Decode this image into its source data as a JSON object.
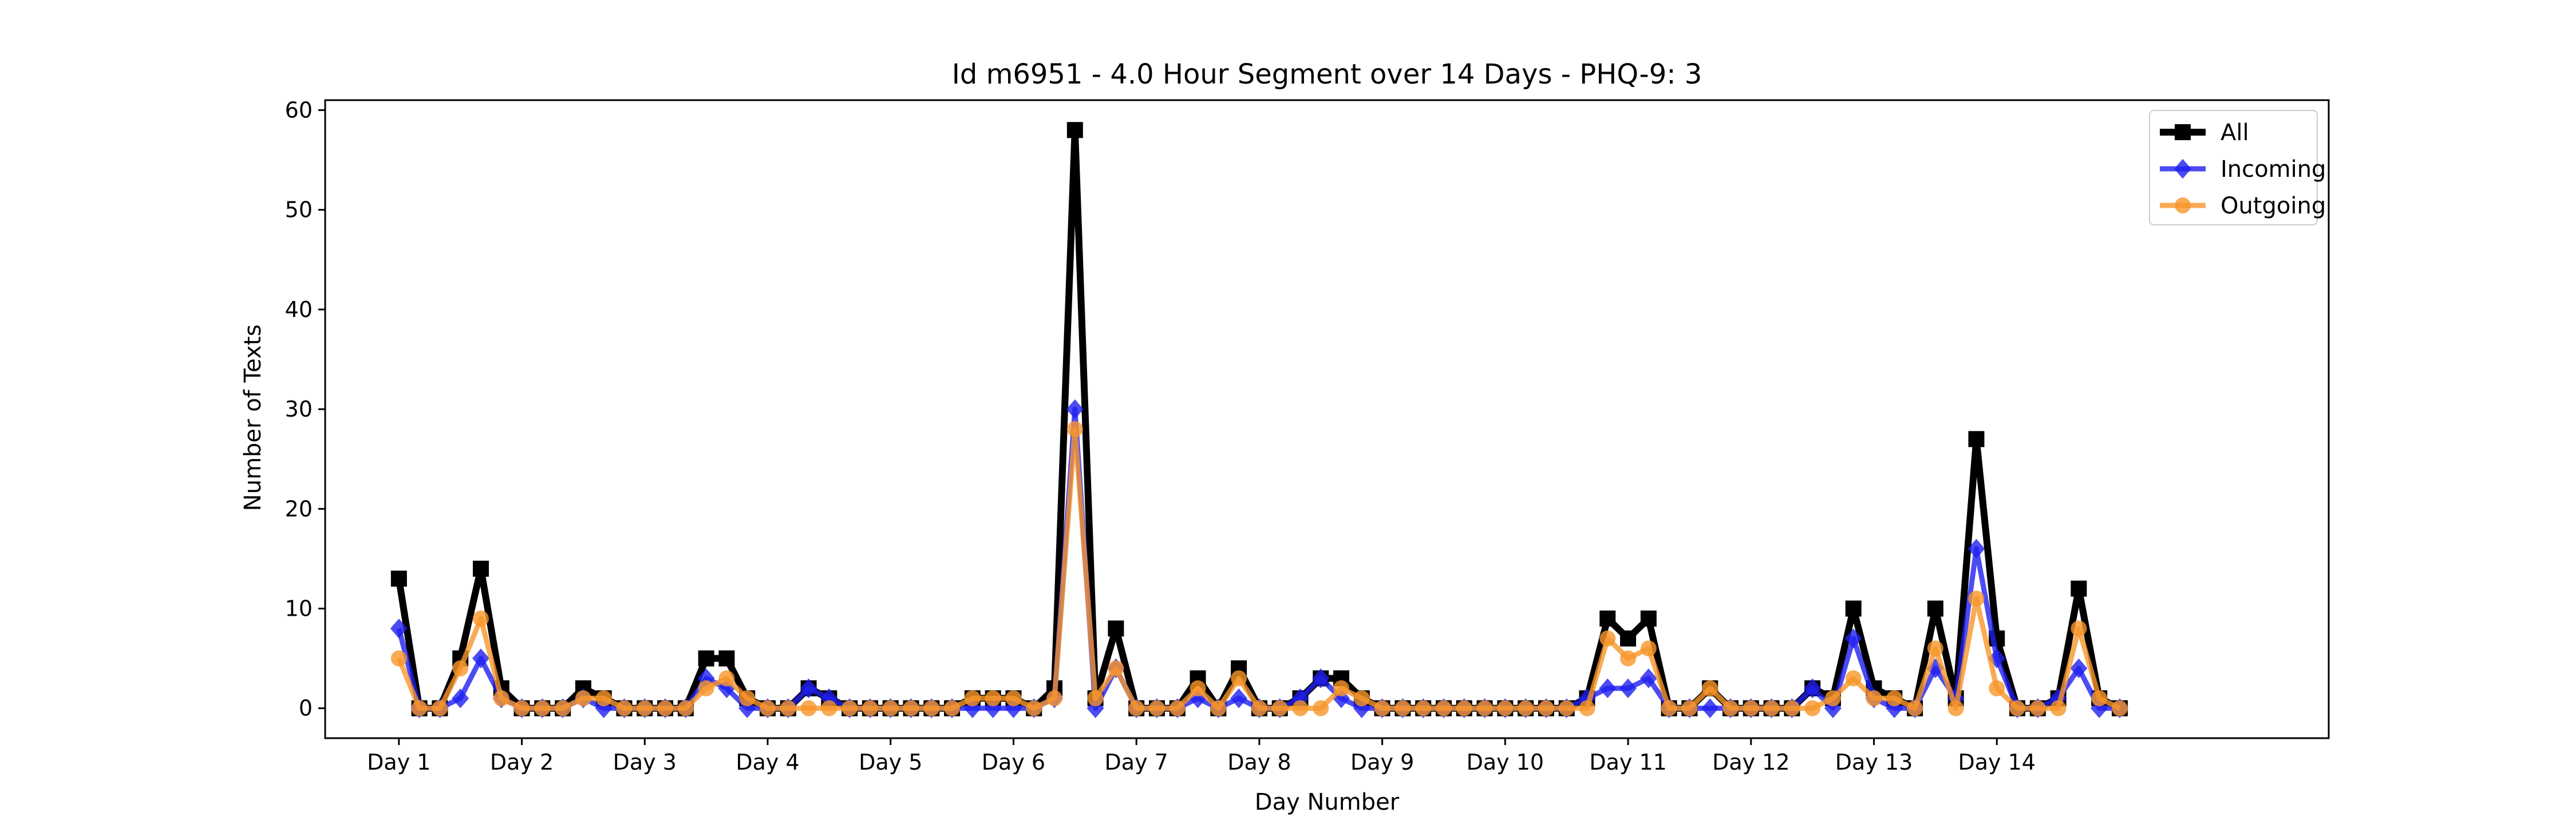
{
  "chart_data": {
    "type": "line",
    "title": "Id m6951 - 4.0 Hour Segment over 14 Days - PHQ-9: 3",
    "xlabel": "Day Number",
    "ylabel": "Number of Texts",
    "xlim": [
      0.4,
      16.7
    ],
    "ylim": [
      -3,
      61
    ],
    "yticks": [
      0,
      10,
      20,
      30,
      40,
      50,
      60
    ],
    "xtick_labels": [
      "Day 1",
      "Day 2",
      "Day 3",
      "Day 4",
      "Day 5",
      "Day 6",
      "Day 7",
      "Day 8",
      "Day 9",
      "Day 10",
      "Day 11",
      "Day 12",
      "Day 13",
      "Day 14"
    ],
    "xtick_positions": [
      1,
      2,
      3,
      4,
      5,
      6,
      7,
      8,
      9,
      10,
      11,
      12,
      13,
      14
    ],
    "grid": false,
    "legend_position": "top-right",
    "points_per_day": 6,
    "series": [
      {
        "name": "All",
        "color": "#000000",
        "marker": "square",
        "values": [
          13,
          0,
          0,
          5,
          14,
          2,
          0,
          0,
          0,
          2,
          1,
          0,
          0,
          0,
          0,
          5,
          5,
          1,
          0,
          0,
          2,
          1,
          0,
          0,
          0,
          0,
          0,
          0,
          1,
          1,
          1,
          0,
          2,
          58,
          1,
          8,
          0,
          0,
          0,
          3,
          0,
          4,
          0,
          0,
          1,
          3,
          3,
          1,
          0,
          0,
          0,
          0,
          0,
          0,
          0,
          0,
          0,
          0,
          1,
          9,
          7,
          9,
          0,
          0,
          2,
          0,
          0,
          0,
          0,
          2,
          1,
          10,
          2,
          1,
          0,
          10,
          1,
          27,
          7,
          0,
          0,
          1,
          12,
          1,
          0
        ]
      },
      {
        "name": "Incoming",
        "color": "#1f1fef",
        "marker": "diamond",
        "values": [
          8,
          0,
          0,
          1,
          5,
          1,
          0,
          0,
          0,
          1,
          0,
          0,
          0,
          0,
          0,
          3,
          2,
          0,
          0,
          0,
          2,
          1,
          0,
          0,
          0,
          0,
          0,
          0,
          0,
          0,
          0,
          0,
          1,
          30,
          0,
          4,
          0,
          0,
          0,
          1,
          0,
          1,
          0,
          0,
          1,
          3,
          1,
          0,
          0,
          0,
          0,
          0,
          0,
          0,
          0,
          0,
          0,
          0,
          1,
          2,
          2,
          3,
          0,
          0,
          0,
          0,
          0,
          0,
          0,
          2,
          0,
          7,
          1,
          0,
          0,
          4,
          1,
          16,
          5,
          0,
          0,
          1,
          4,
          0,
          0
        ]
      },
      {
        "name": "Outgoing",
        "color": "#f7962a",
        "marker": "circle",
        "values": [
          5,
          0,
          0,
          4,
          9,
          1,
          0,
          0,
          0,
          1,
          1,
          0,
          0,
          0,
          0,
          2,
          3,
          1,
          0,
          0,
          0,
          0,
          0,
          0,
          0,
          0,
          0,
          0,
          1,
          1,
          1,
          0,
          1,
          28,
          1,
          4,
          0,
          0,
          0,
          2,
          0,
          3,
          0,
          0,
          0,
          0,
          2,
          1,
          0,
          0,
          0,
          0,
          0,
          0,
          0,
          0,
          0,
          0,
          0,
          7,
          5,
          6,
          0,
          0,
          2,
          0,
          0,
          0,
          0,
          0,
          1,
          3,
          1,
          1,
          0,
          6,
          0,
          11,
          2,
          0,
          0,
          0,
          8,
          1,
          0
        ]
      }
    ]
  }
}
